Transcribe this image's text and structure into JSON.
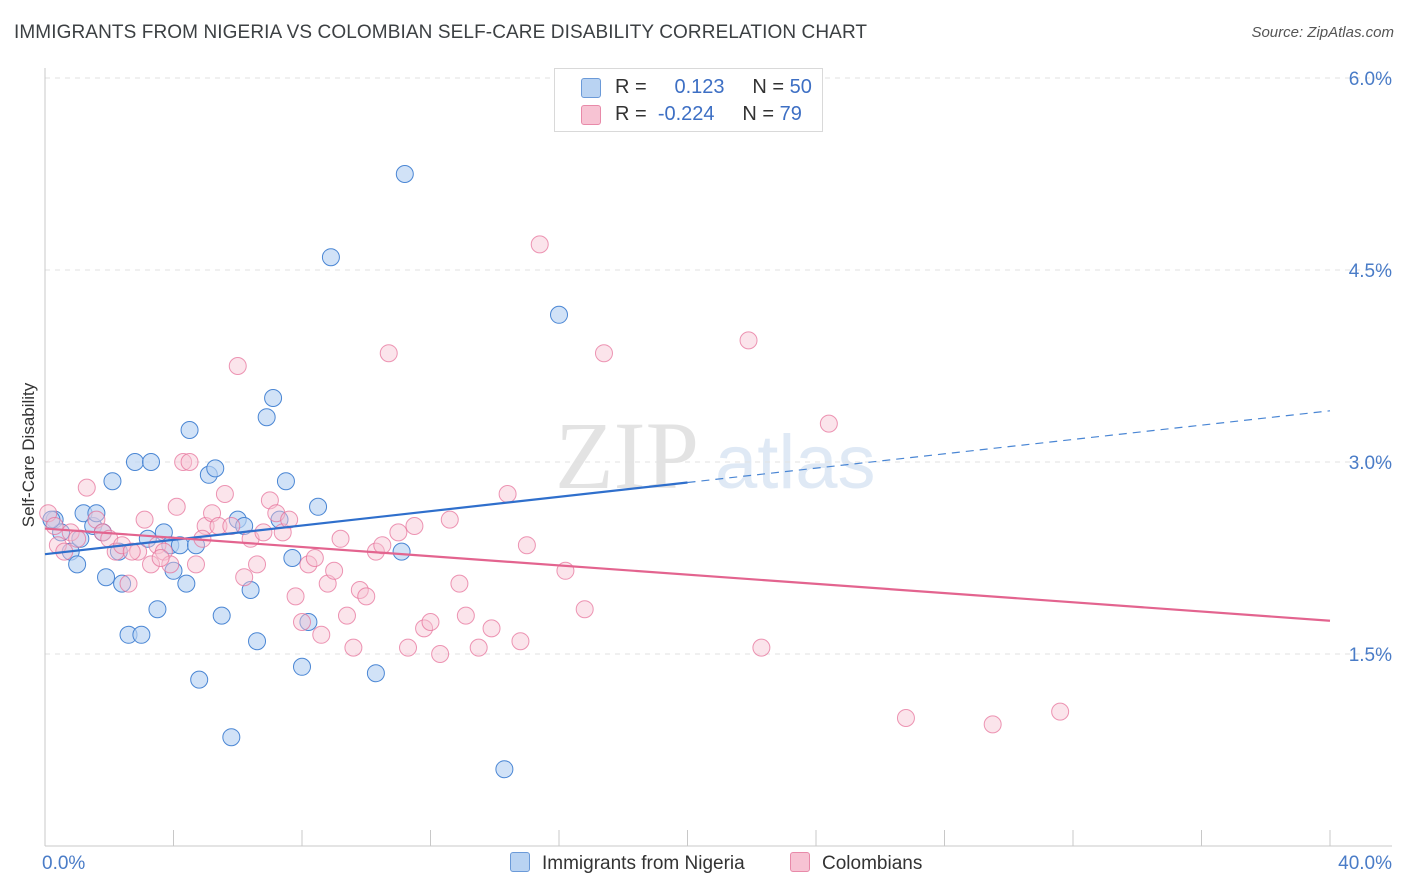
{
  "header": {
    "title": "IMMIGRANTS FROM NIGERIA VS COLOMBIAN SELF-CARE DISABILITY CORRELATION CHART",
    "source": "Source: ZipAtlas.com"
  },
  "legend": {
    "rows": [
      {
        "r_label": "R =",
        "r_value": "0.123",
        "n_label": "N =",
        "n_value": "50",
        "color": "#a8c8f0"
      },
      {
        "r_label": "R =",
        "r_value": "-0.224",
        "n_label": "N =",
        "n_value": "79",
        "color": "#f5b8cb"
      }
    ]
  },
  "bottom_legend": {
    "series1": "Immigrants from Nigeria",
    "series2": "Colombians"
  },
  "watermark": {
    "zip": "ZIP",
    "atlas": "atlas"
  },
  "chart_data": {
    "type": "scatter",
    "title": "IMMIGRANTS FROM NIGERIA VS COLOMBIAN SELF-CARE DISABILITY CORRELATION CHART",
    "xlabel": "",
    "ylabel": "Self-Care Disability",
    "xlim": [
      0,
      40
    ],
    "ylim": [
      0,
      6.4
    ],
    "x_tick_labels": [
      "0.0%",
      "40.0%"
    ],
    "y_ticks": [
      1.5,
      3.0,
      4.5,
      6.0
    ],
    "y_tick_labels": [
      "1.5%",
      "3.0%",
      "4.5%",
      "6.0%"
    ],
    "grid": "horizontal dashed",
    "legend_position": "top-center",
    "colors": {
      "nigeria": "#4a86d4",
      "nigeria_fill": "#b9d3f2",
      "colombians": "#e56b96",
      "colombians_fill": "#f7c3d3"
    },
    "series": [
      {
        "name": "Immigrants from Nigeria",
        "trend": {
          "x": [
            0,
            20
          ],
          "y": [
            2.28,
            2.84
          ],
          "dashed_to": [
            40,
            3.4
          ]
        },
        "points": [
          [
            0.3,
            2.55
          ],
          [
            0.5,
            2.45
          ],
          [
            0.8,
            2.3
          ],
          [
            1.0,
            2.2
          ],
          [
            1.2,
            2.6
          ],
          [
            1.5,
            2.5
          ],
          [
            1.6,
            2.6
          ],
          [
            1.8,
            2.45
          ],
          [
            1.9,
            2.1
          ],
          [
            2.1,
            2.85
          ],
          [
            2.3,
            2.3
          ],
          [
            2.4,
            2.05
          ],
          [
            2.6,
            1.65
          ],
          [
            2.8,
            3.0
          ],
          [
            3.0,
            1.65
          ],
          [
            3.2,
            2.4
          ],
          [
            3.3,
            3.0
          ],
          [
            3.5,
            1.85
          ],
          [
            3.7,
            2.45
          ],
          [
            3.9,
            2.35
          ],
          [
            4.0,
            2.15
          ],
          [
            4.2,
            2.35
          ],
          [
            4.4,
            2.05
          ],
          [
            4.5,
            3.25
          ],
          [
            4.7,
            2.35
          ],
          [
            4.8,
            1.3
          ],
          [
            5.1,
            2.9
          ],
          [
            5.3,
            2.95
          ],
          [
            5.5,
            1.8
          ],
          [
            5.8,
            0.85
          ],
          [
            6.0,
            2.55
          ],
          [
            6.2,
            2.5
          ],
          [
            6.4,
            2.0
          ],
          [
            6.6,
            1.6
          ],
          [
            6.9,
            3.35
          ],
          [
            7.1,
            3.5
          ],
          [
            7.3,
            2.55
          ],
          [
            7.5,
            2.85
          ],
          [
            7.7,
            2.25
          ],
          [
            8.2,
            1.75
          ],
          [
            8.5,
            2.65
          ],
          [
            8.9,
            4.6
          ],
          [
            10.3,
            1.35
          ],
          [
            11.1,
            2.3
          ],
          [
            11.2,
            5.25
          ],
          [
            14.3,
            0.6
          ],
          [
            16.0,
            4.15
          ],
          [
            8.0,
            1.4
          ],
          [
            1.1,
            2.4
          ],
          [
            0.2,
            2.55
          ]
        ]
      },
      {
        "name": "Colombians",
        "trend": {
          "x": [
            0,
            40
          ],
          "y": [
            2.48,
            1.76
          ]
        },
        "points": [
          [
            0.1,
            2.6
          ],
          [
            0.4,
            2.35
          ],
          [
            0.6,
            2.3
          ],
          [
            0.8,
            2.45
          ],
          [
            1.0,
            2.4
          ],
          [
            1.3,
            2.8
          ],
          [
            1.6,
            2.55
          ],
          [
            1.8,
            2.45
          ],
          [
            2.0,
            2.4
          ],
          [
            2.2,
            2.3
          ],
          [
            2.4,
            2.35
          ],
          [
            2.6,
            2.05
          ],
          [
            2.9,
            2.3
          ],
          [
            3.1,
            2.55
          ],
          [
            3.3,
            2.2
          ],
          [
            3.5,
            2.35
          ],
          [
            3.7,
            2.3
          ],
          [
            3.9,
            2.2
          ],
          [
            4.1,
            2.65
          ],
          [
            4.3,
            3.0
          ],
          [
            4.5,
            3.0
          ],
          [
            4.7,
            2.2
          ],
          [
            5.0,
            2.5
          ],
          [
            5.2,
            2.6
          ],
          [
            5.4,
            2.5
          ],
          [
            5.6,
            2.75
          ],
          [
            5.8,
            2.5
          ],
          [
            6.0,
            3.75
          ],
          [
            6.2,
            2.1
          ],
          [
            6.4,
            2.4
          ],
          [
            6.6,
            2.2
          ],
          [
            6.8,
            2.45
          ],
          [
            7.0,
            2.7
          ],
          [
            7.2,
            2.6
          ],
          [
            7.4,
            2.45
          ],
          [
            7.6,
            2.55
          ],
          [
            7.8,
            1.95
          ],
          [
            8.0,
            1.75
          ],
          [
            8.2,
            2.2
          ],
          [
            8.4,
            2.25
          ],
          [
            8.6,
            1.65
          ],
          [
            8.8,
            2.05
          ],
          [
            9.0,
            2.15
          ],
          [
            9.2,
            2.4
          ],
          [
            9.4,
            1.8
          ],
          [
            9.6,
            1.55
          ],
          [
            9.8,
            2.0
          ],
          [
            10.0,
            1.95
          ],
          [
            10.3,
            2.3
          ],
          [
            10.5,
            2.35
          ],
          [
            10.7,
            3.85
          ],
          [
            11.0,
            2.45
          ],
          [
            11.3,
            1.55
          ],
          [
            11.5,
            2.5
          ],
          [
            11.8,
            1.7
          ],
          [
            12.0,
            1.75
          ],
          [
            12.3,
            1.5
          ],
          [
            12.6,
            2.55
          ],
          [
            12.9,
            2.05
          ],
          [
            13.1,
            1.8
          ],
          [
            13.5,
            1.55
          ],
          [
            13.9,
            1.7
          ],
          [
            14.4,
            2.75
          ],
          [
            14.8,
            1.6
          ],
          [
            15.0,
            2.35
          ],
          [
            15.4,
            4.7
          ],
          [
            16.2,
            2.15
          ],
          [
            16.8,
            1.85
          ],
          [
            17.4,
            3.85
          ],
          [
            21.9,
            3.95
          ],
          [
            22.3,
            1.55
          ],
          [
            24.4,
            3.3
          ],
          [
            26.8,
            1.0
          ],
          [
            29.5,
            0.95
          ],
          [
            31.6,
            1.05
          ],
          [
            0.3,
            2.5
          ],
          [
            2.7,
            2.3
          ],
          [
            4.9,
            2.4
          ],
          [
            3.6,
            2.25
          ]
        ]
      }
    ]
  }
}
